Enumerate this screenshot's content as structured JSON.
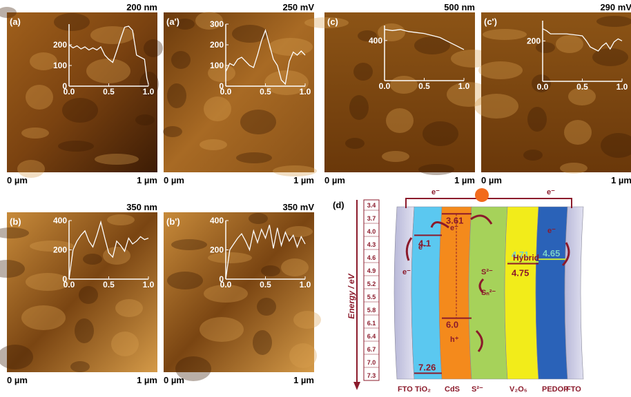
{
  "panels": [
    {
      "tag": "(a)",
      "scale": "200 nm",
      "left": "0 µm",
      "right": "1 µm",
      "inset": {
        "ylim": [
          0,
          300
        ],
        "yticks": [
          0,
          100,
          200
        ],
        "xticks": [
          "0.0",
          "0.5",
          "1.0"
        ],
        "x": [
          0,
          0.05,
          0.1,
          0.15,
          0.2,
          0.25,
          0.3,
          0.35,
          0.4,
          0.45,
          0.5,
          0.55,
          0.6,
          0.65,
          0.7,
          0.75,
          0.8,
          0.85,
          0.9,
          0.95,
          0.98,
          1.0
        ],
        "values": [
          200,
          185,
          195,
          180,
          190,
          175,
          185,
          175,
          190,
          150,
          130,
          115,
          170,
          230,
          285,
          290,
          270,
          150,
          140,
          130,
          40,
          10
        ]
      }
    },
    {
      "tag": "(a')",
      "scale": "250 mV",
      "left": "0 µm",
      "right": "1 µm",
      "inset": {
        "ylim": [
          0,
          300
        ],
        "yticks": [
          0,
          100,
          200,
          300
        ],
        "xticks": [
          "0.0",
          "0.5",
          "1.0"
        ],
        "x": [
          0,
          0.05,
          0.1,
          0.15,
          0.2,
          0.25,
          0.3,
          0.35,
          0.4,
          0.45,
          0.5,
          0.55,
          0.6,
          0.65,
          0.7,
          0.75,
          0.8,
          0.85,
          0.9,
          0.95,
          1.0
        ],
        "values": [
          70,
          110,
          100,
          130,
          140,
          120,
          100,
          90,
          150,
          220,
          270,
          200,
          130,
          100,
          30,
          10,
          120,
          165,
          150,
          170,
          150
        ]
      }
    },
    {
      "tag": "(c)",
      "scale": "500 nm",
      "left": "0 µm",
      "right": "1 µm",
      "inset": {
        "ylim": [
          0,
          550
        ],
        "yticks": [
          400
        ],
        "xticks": [
          "0.0",
          "0.5",
          "1.0"
        ],
        "x": [
          0,
          0.1,
          0.2,
          0.3,
          0.4,
          0.5,
          0.6,
          0.7,
          0.8,
          0.9,
          1.0
        ],
        "values": [
          510,
          500,
          510,
          490,
          480,
          470,
          450,
          430,
          390,
          350,
          310
        ]
      }
    },
    {
      "tag": "(c')",
      "scale": "290 mV",
      "left": "0 µm",
      "right": "1 µm",
      "inset": {
        "ylim": [
          0,
          300
        ],
        "yticks": [
          200
        ],
        "xticks": [
          "0.0",
          "0.5",
          "1.0"
        ],
        "x": [
          0,
          0.05,
          0.1,
          0.2,
          0.3,
          0.4,
          0.5,
          0.55,
          0.6,
          0.7,
          0.75,
          0.8,
          0.85,
          0.9,
          0.95,
          1.0
        ],
        "values": [
          260,
          250,
          235,
          235,
          235,
          230,
          225,
          200,
          170,
          150,
          175,
          190,
          160,
          195,
          210,
          200
        ]
      }
    },
    {
      "tag": "(b)",
      "scale": "350 nm",
      "left": "0 µm",
      "right": "1 µm",
      "inset": {
        "ylim": [
          0,
          400
        ],
        "yticks": [
          0,
          200,
          400
        ],
        "xticks": [
          "0.0",
          "0.5",
          "1.0"
        ],
        "x": [
          0,
          0.05,
          0.1,
          0.15,
          0.2,
          0.25,
          0.3,
          0.35,
          0.4,
          0.45,
          0.5,
          0.55,
          0.6,
          0.65,
          0.7,
          0.75,
          0.8,
          0.85,
          0.9,
          0.95,
          1.0
        ],
        "values": [
          0,
          200,
          260,
          300,
          330,
          260,
          220,
          300,
          390,
          280,
          180,
          150,
          260,
          230,
          190,
          280,
          240,
          260,
          290,
          270,
          280
        ]
      }
    },
    {
      "tag": "(b')",
      "scale": "350 mV",
      "left": "0 µm",
      "right": "1 µm",
      "inset": {
        "ylim": [
          0,
          400
        ],
        "yticks": [
          0,
          200,
          400
        ],
        "xticks": [
          "0.0",
          "0.5",
          "1.0"
        ],
        "x": [
          0,
          0.05,
          0.1,
          0.15,
          0.2,
          0.25,
          0.3,
          0.35,
          0.4,
          0.45,
          0.5,
          0.55,
          0.6,
          0.65,
          0.7,
          0.75,
          0.8,
          0.85,
          0.9,
          0.95,
          1.0
        ],
        "values": [
          0,
          200,
          240,
          280,
          310,
          260,
          200,
          330,
          250,
          340,
          280,
          370,
          210,
          350,
          230,
          320,
          260,
          300,
          220,
          290,
          240
        ]
      }
    }
  ],
  "diagram": {
    "tag": "(d)",
    "axis_label": "Energy / eV",
    "ticks": [
      "3.4",
      "3.7",
      "4.0",
      "4.3",
      "4.6",
      "4.9",
      "5.2",
      "5.5",
      "5.8",
      "6.1",
      "6.4",
      "6.7",
      "7.0",
      "7.3"
    ],
    "layers": [
      "FTO",
      "TiO₂",
      "CdS",
      "S²⁻",
      "V₂O₅",
      "PEDOP",
      "FTO"
    ],
    "levels": [
      {
        "label": "4.1",
        "layer": 1
      },
      {
        "label": "7.26",
        "layer": 1
      },
      {
        "label": "3.61",
        "layer": 2
      },
      {
        "label": "6.0",
        "layer": 2
      },
      {
        "label": "4.71",
        "layer": 4
      },
      {
        "label": "4.75",
        "layer": 4
      },
      {
        "label": "4.65",
        "layer": 5
      }
    ],
    "texts": {
      "e_top1": "e⁻",
      "e_top2": "e⁻",
      "e_tio2": "e⁻",
      "e_fto": "e⁻",
      "e_cds": "e⁻",
      "e_pedop": "e⁻",
      "hole": "h⁺",
      "hybrid": "Hybrid",
      "s2": "S²⁻",
      "sn2": "Sₙ²⁻"
    }
  }
}
